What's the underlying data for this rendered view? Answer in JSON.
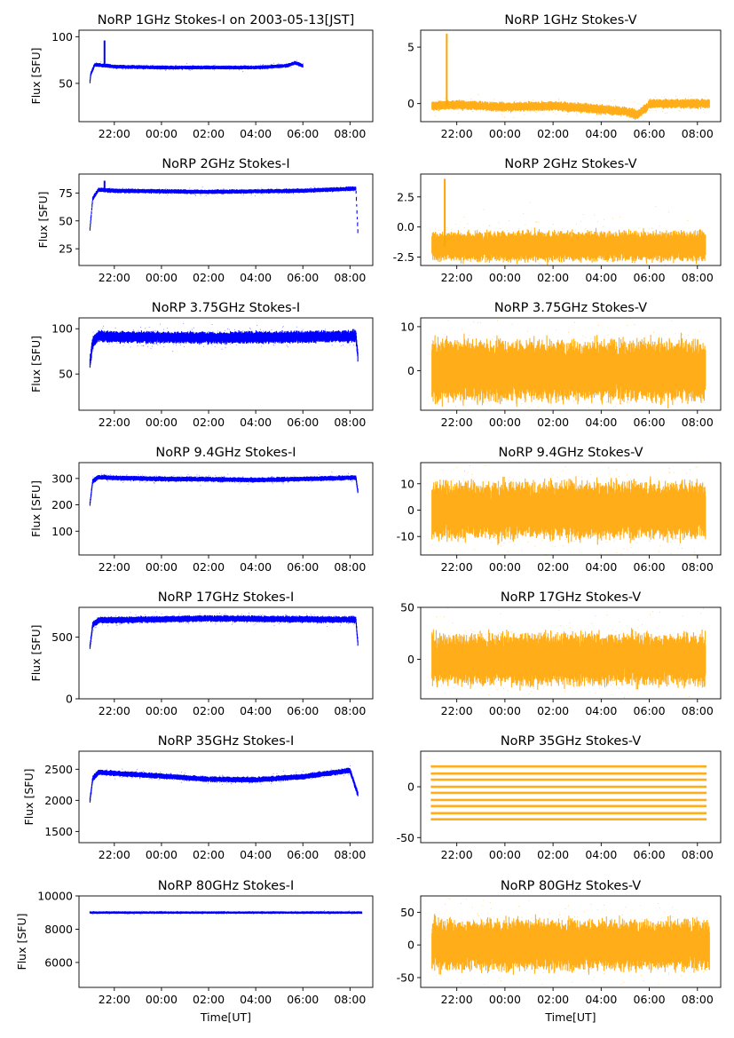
{
  "figure": {
    "x_tick_labels": [
      "22:00",
      "00:00",
      "02:00",
      "04:00",
      "06:00",
      "08:00"
    ],
    "xlabel": "Time[UT]",
    "ylabel": "Flux [SFU]"
  },
  "colors": {
    "stokes_i": "#0000ff",
    "stokes_v": "#ffa500",
    "axes": "#000000"
  },
  "chart_data": [
    {
      "type": "scatter",
      "title": "NoRP 1GHz Stokes-I on 2003-05-13[JST]",
      "ylabel": "Flux [SFU]",
      "xlabel": "",
      "ylim": [
        9,
        107
      ],
      "yticks": [
        50,
        100
      ],
      "color": "#0000ff",
      "noise": 1,
      "profile": {
        "x": [
          "20:58",
          "21:00",
          "21:10",
          "21:40",
          "22:00",
          "00:00",
          "02:00",
          "04:00",
          "05:20",
          "05:40",
          "06:00"
        ],
        "y": [
          52,
          60,
          70,
          69,
          68,
          67,
          67,
          67,
          69,
          72,
          69
        ]
      },
      "spikes": [
        {
          "x": "21:35",
          "y": 96
        }
      ]
    },
    {
      "type": "scatter",
      "title": "NoRP 1GHz Stokes-V",
      "ylabel": "",
      "xlabel": "",
      "ylim": [
        -1.6,
        6.5
      ],
      "yticks": [
        0,
        5
      ],
      "color": "#ffa500",
      "noise": 0.25,
      "profile": {
        "x": [
          "20:58",
          "22:00",
          "00:00",
          "02:00",
          "04:00",
          "05:00",
          "05:30",
          "05:55",
          "06:00",
          "08:30"
        ],
        "y": [
          -0.2,
          -0.1,
          -0.3,
          -0.2,
          -0.5,
          -0.7,
          -1.0,
          -0.3,
          0,
          0
        ]
      },
      "spikes": [
        {
          "x": "21:35",
          "y": 6.2
        }
      ]
    },
    {
      "type": "scatter",
      "title": "NoRP 2GHz Stokes-I",
      "ylabel": "Flux [SFU]",
      "xlabel": "",
      "ylim": [
        10,
        92
      ],
      "yticks": [
        25,
        50,
        75
      ],
      "color": "#0000ff",
      "noise": 1,
      "profile": {
        "x": [
          "20:58",
          "21:05",
          "21:20",
          "22:00",
          "02:00",
          "06:00",
          "08:15",
          "08:20"
        ],
        "y": [
          43,
          70,
          78,
          77,
          76,
          77,
          79,
          41
        ]
      },
      "spikes": [
        {
          "x": "21:35",
          "y": 86
        }
      ]
    },
    {
      "type": "scatter",
      "title": "NoRP 2GHz Stokes-V",
      "ylabel": "",
      "xlabel": "",
      "ylim": [
        -3.2,
        4.4
      ],
      "yticks": [
        -2.5,
        0.0,
        2.5
      ],
      "color": "#ffa500",
      "noise": 0.8,
      "profile": {
        "x": [
          "20:58",
          "08:20"
        ],
        "y": [
          -1.6,
          -1.6
        ]
      },
      "spikes": [
        {
          "x": "21:30",
          "y": 4.0
        }
      ]
    },
    {
      "type": "scatter",
      "title": "NoRP 3.75GHz Stokes-I",
      "ylabel": "Flux [SFU]",
      "xlabel": "",
      "ylim": [
        10,
        112
      ],
      "yticks": [
        50,
        100
      ],
      "color": "#0000ff",
      "noise": 4,
      "profile": {
        "x": [
          "20:58",
          "21:05",
          "21:20",
          "22:00",
          "02:00",
          "06:00",
          "08:15",
          "08:20"
        ],
        "y": [
          62,
          85,
          92,
          91,
          90,
          91,
          92,
          70
        ]
      },
      "spikes": []
    },
    {
      "type": "scatter",
      "title": "NoRP 3.75GHz Stokes-V",
      "ylabel": "",
      "xlabel": "",
      "ylim": [
        -9,
        12
      ],
      "yticks": [
        0,
        10
      ],
      "color": "#ffa500",
      "noise": 4.5,
      "profile": {
        "x": [
          "20:58",
          "08:20"
        ],
        "y": [
          0,
          0
        ]
      },
      "spikes": []
    },
    {
      "type": "scatter",
      "title": "NoRP 9.4GHz Stokes-I",
      "ylabel": "Flux [SFU]",
      "xlabel": "",
      "ylim": [
        10,
        360
      ],
      "yticks": [
        100,
        200,
        300
      ],
      "color": "#0000ff",
      "noise": 5,
      "profile": {
        "x": [
          "20:58",
          "21:05",
          "21:20",
          "22:00",
          "00:00",
          "02:00",
          "04:00",
          "06:00",
          "08:15",
          "08:20"
        ],
        "y": [
          205,
          290,
          305,
          302,
          298,
          297,
          294,
          298,
          303,
          250
        ]
      },
      "spikes": []
    },
    {
      "type": "scatter",
      "title": "NoRP 9.4GHz Stokes-V",
      "ylabel": "",
      "xlabel": "",
      "ylim": [
        -17,
        18
      ],
      "yticks": [
        -10,
        0,
        10
      ],
      "color": "#ffa500",
      "noise": 7,
      "profile": {
        "x": [
          "20:58",
          "08:20"
        ],
        "y": [
          0,
          0
        ]
      },
      "spikes": []
    },
    {
      "type": "scatter",
      "title": "NoRP 17GHz Stokes-I",
      "ylabel": "Flux [SFU]",
      "xlabel": "",
      "ylim": [
        0,
        740
      ],
      "yticks": [
        0,
        500
      ],
      "color": "#0000ff",
      "noise": 15,
      "profile": {
        "x": [
          "20:58",
          "21:05",
          "21:20",
          "02:00",
          "08:15",
          "08:20"
        ],
        "y": [
          420,
          600,
          635,
          650,
          640,
          450
        ]
      },
      "spikes": []
    },
    {
      "type": "scatter",
      "title": "NoRP 17GHz Stokes-V",
      "ylabel": "",
      "xlabel": "",
      "ylim": [
        -38,
        50
      ],
      "yticks": [
        0,
        50
      ],
      "color": "#ffa500",
      "noise": 16,
      "profile": {
        "x": [
          "20:58",
          "08:20"
        ],
        "y": [
          0,
          0
        ]
      },
      "spikes": []
    },
    {
      "type": "scatter",
      "title": "NoRP 35GHz Stokes-I",
      "ylabel": "Flux [SFU]",
      "xlabel": "",
      "ylim": [
        1320,
        2790
      ],
      "yticks": [
        1500,
        2000,
        2500
      ],
      "color": "#0000ff",
      "noise": 25,
      "profile": {
        "x": [
          "20:58",
          "21:05",
          "21:20",
          "00:00",
          "02:00",
          "04:00",
          "06:00",
          "08:00",
          "08:20"
        ],
        "y": [
          2000,
          2350,
          2450,
          2390,
          2340,
          2330,
          2380,
          2480,
          2100
        ]
      },
      "spikes": []
    },
    {
      "type": "scatter",
      "title": "NoRP 35GHz Stokes-V",
      "ylabel": "",
      "xlabel": "",
      "ylim": [
        -55,
        35
      ],
      "yticks": [
        -50,
        0
      ],
      "color": "#ffa500",
      "noise": 0,
      "levels": [
        20,
        13,
        7,
        0,
        -6,
        -13,
        -19,
        -26,
        -32
      ],
      "profile": {
        "x": [
          "20:58",
          "08:20"
        ],
        "y": [
          0,
          0
        ]
      },
      "spikes": []
    },
    {
      "type": "scatter",
      "title": "NoRP 80GHz Stokes-I",
      "ylabel": "Flux [SFU]",
      "xlabel": "Time[UT]",
      "ylim": [
        4500,
        10000
      ],
      "yticks": [
        6000,
        8000,
        10000
      ],
      "color": "#0000ff",
      "noise": 30,
      "profile": {
        "x": [
          "20:58",
          "08:30"
        ],
        "y": [
          9000,
          9000
        ]
      },
      "spikes": []
    },
    {
      "type": "scatter",
      "title": "NoRP 80GHz Stokes-V",
      "ylabel": "",
      "xlabel": "Time[UT]",
      "ylim": [
        -65,
        75
      ],
      "yticks": [
        -50,
        0,
        50
      ],
      "color": "#ffa500",
      "noise": 25,
      "profile": {
        "x": [
          "20:58",
          "08:30"
        ],
        "y": [
          0,
          0
        ]
      },
      "spikes": []
    }
  ]
}
